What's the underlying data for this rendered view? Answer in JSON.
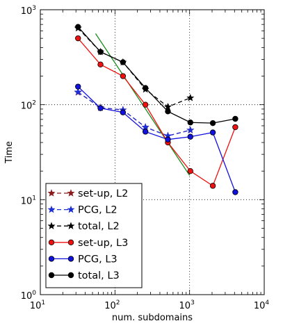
{
  "chart_data": {
    "type": "line",
    "title": "",
    "xlabel": "num. subdomains",
    "ylabel": "Time",
    "xscale": "log",
    "yscale": "log",
    "xlim": [
      10,
      10000
    ],
    "ylim": [
      1,
      1000
    ],
    "grid": "dotted",
    "legend_position": "lower-left",
    "x_ticks": [
      {
        "base": "10",
        "exp": "1",
        "value": 10
      },
      {
        "base": "10",
        "exp": "2",
        "value": 100
      },
      {
        "base": "10",
        "exp": "3",
        "value": 1000
      },
      {
        "base": "10",
        "exp": "4",
        "value": 10000
      }
    ],
    "y_ticks": [
      {
        "base": "10",
        "exp": "0",
        "value": 1
      },
      {
        "base": "10",
        "exp": "1",
        "value": 10
      },
      {
        "base": "10",
        "exp": "2",
        "value": 100
      },
      {
        "base": "10",
        "exp": "3",
        "value": 1000
      }
    ],
    "series": [
      {
        "name": "set-up, L2",
        "color": "#8b1a1a",
        "marker": "star",
        "dash": "dashed",
        "x": [
          32,
          64,
          128,
          256,
          512,
          1024
        ],
        "y": [
          135,
          93,
          88,
          58,
          47,
          54
        ]
      },
      {
        "name": "PCG, L2",
        "color": "#1c2fd6",
        "marker": "star",
        "dash": "dashed",
        "x": [
          32,
          64,
          128,
          256,
          512,
          1024
        ],
        "y": [
          136,
          93,
          88,
          58,
          47,
          54
        ]
      },
      {
        "name": "total, L2",
        "color": "#000000",
        "marker": "star",
        "dash": "dashed",
        "x": [
          32,
          64,
          128,
          256,
          512,
          1024
        ],
        "y": [
          640,
          360,
          280,
          145,
          95,
          118
        ]
      },
      {
        "name": "set-up, L3",
        "color": "#ee1111",
        "marker": "circle",
        "dash": "solid",
        "x": [
          32,
          64,
          128,
          256,
          512,
          1024,
          2048,
          4096
        ],
        "y": [
          500,
          265,
          200,
          100,
          40,
          20,
          14,
          58
        ]
      },
      {
        "name": "PCG, L3",
        "color": "#1111dd",
        "marker": "circle",
        "dash": "solid",
        "x": [
          32,
          64,
          128,
          256,
          512,
          1024,
          2048,
          4096
        ],
        "y": [
          155,
          92,
          83,
          52,
          43,
          46,
          51,
          12
        ]
      },
      {
        "name": "total, L3",
        "color": "#000000",
        "marker": "circle",
        "dash": "solid",
        "x": [
          32,
          64,
          128,
          256,
          512,
          1024,
          2048,
          4096
        ],
        "y": [
          660,
          360,
          280,
          150,
          85,
          65,
          64,
          71
        ]
      }
    ],
    "reference_line": {
      "color": "#1a8a1a",
      "x": [
        55,
        1000
      ],
      "y": [
        560,
        18
      ]
    }
  }
}
